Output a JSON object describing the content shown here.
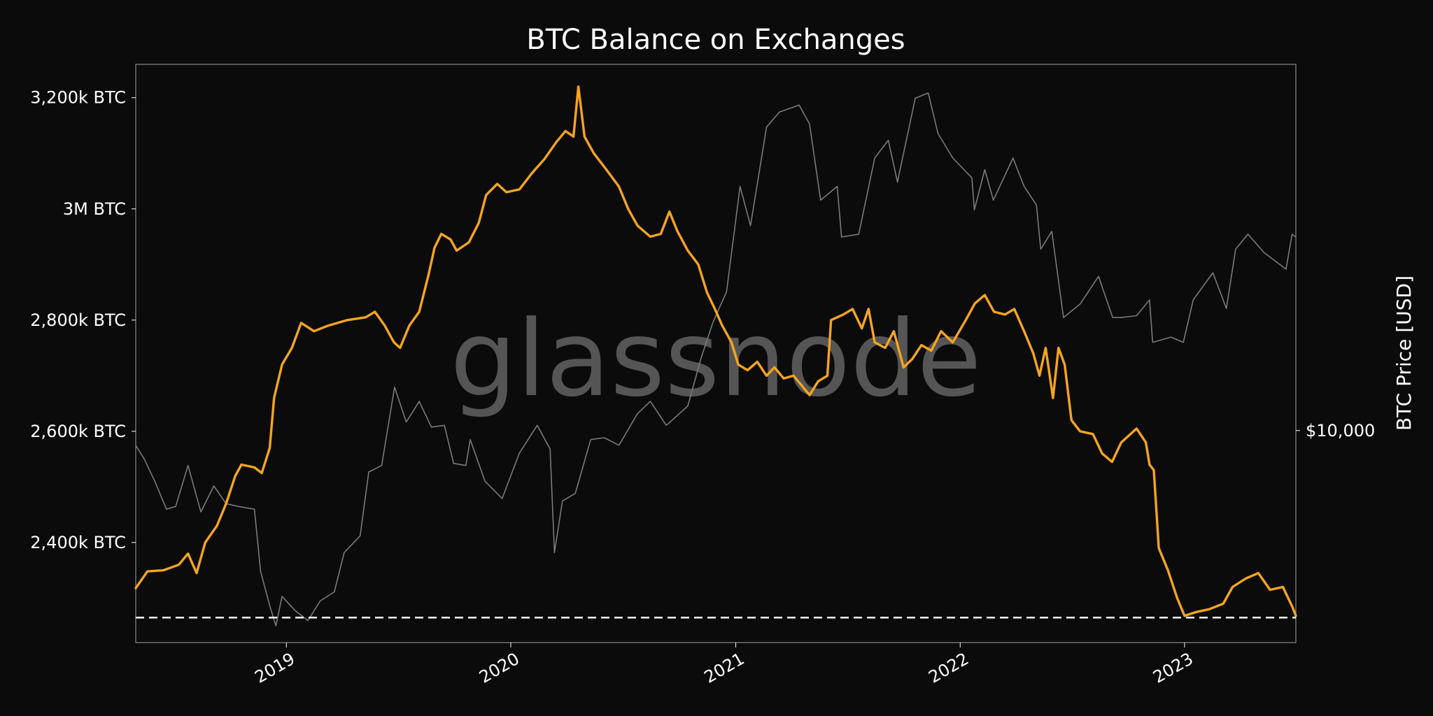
{
  "chart_data": {
    "type": "line",
    "title": "BTC Balance on Exchanges",
    "watermark": "glassnode",
    "xlim": [
      "2018-05-01",
      "2023-07-01"
    ],
    "x_ticks": [
      {
        "date": "2019-01-01",
        "label": "2019"
      },
      {
        "date": "2020-01-01",
        "label": "2020"
      },
      {
        "date": "2021-01-01",
        "label": "2021"
      },
      {
        "date": "2022-01-01",
        "label": "2022"
      },
      {
        "date": "2023-01-01",
        "label": "2023"
      }
    ],
    "y_left": {
      "unit": "BTC",
      "ylim": [
        2220000,
        3260000
      ],
      "ticks": [
        {
          "value": 2400000,
          "label": "2,400k BTC"
        },
        {
          "value": 2600000,
          "label": "2,600k BTC"
        },
        {
          "value": 2800000,
          "label": "2,800k BTC"
        },
        {
          "value": 3000000,
          "label": "3M BTC"
        },
        {
          "value": 3200000,
          "label": "3,200k BTC"
        }
      ]
    },
    "y_right": {
      "label": "BTC Price [USD]",
      "scale": "log",
      "ylim": [
        3000,
        80000
      ],
      "ticks": [
        {
          "value": 10000,
          "label": "$10,000"
        }
      ]
    },
    "reference_line": {
      "value": 2265000,
      "style": "dashed",
      "color": "#ffffff"
    },
    "series": [
      {
        "axis": "left",
        "color": "#f7a51c",
        "points": [
          [
            "2018-05-01",
            2318000
          ],
          [
            "2018-05-20",
            2348000
          ],
          [
            "2018-06-15",
            2350000
          ],
          [
            "2018-07-10",
            2360000
          ],
          [
            "2018-07-25",
            2380000
          ],
          [
            "2018-08-08",
            2345000
          ],
          [
            "2018-08-22",
            2400000
          ],
          [
            "2018-09-10",
            2430000
          ],
          [
            "2018-09-25",
            2470000
          ],
          [
            "2018-10-10",
            2520000
          ],
          [
            "2018-10-20",
            2540000
          ],
          [
            "2018-11-10",
            2535000
          ],
          [
            "2018-11-22",
            2525000
          ],
          [
            "2018-12-05",
            2570000
          ],
          [
            "2018-12-12",
            2660000
          ],
          [
            "2018-12-25",
            2720000
          ],
          [
            "2019-01-10",
            2750000
          ],
          [
            "2019-01-25",
            2795000
          ],
          [
            "2019-02-15",
            2780000
          ],
          [
            "2019-03-10",
            2790000
          ],
          [
            "2019-04-10",
            2800000
          ],
          [
            "2019-05-10",
            2805000
          ],
          [
            "2019-05-25",
            2815000
          ],
          [
            "2019-06-10",
            2790000
          ],
          [
            "2019-06-25",
            2760000
          ],
          [
            "2019-07-05",
            2750000
          ],
          [
            "2019-07-20",
            2790000
          ],
          [
            "2019-08-05",
            2815000
          ],
          [
            "2019-08-20",
            2880000
          ],
          [
            "2019-08-30",
            2930000
          ],
          [
            "2019-09-10",
            2955000
          ],
          [
            "2019-09-25",
            2945000
          ],
          [
            "2019-10-05",
            2925000
          ],
          [
            "2019-10-25",
            2940000
          ],
          [
            "2019-11-10",
            2975000
          ],
          [
            "2019-11-22",
            3025000
          ],
          [
            "2019-12-10",
            3045000
          ],
          [
            "2019-12-25",
            3030000
          ],
          [
            "2020-01-15",
            3035000
          ],
          [
            "2020-02-05",
            3065000
          ],
          [
            "2020-02-25",
            3090000
          ],
          [
            "2020-03-15",
            3120000
          ],
          [
            "2020-03-30",
            3140000
          ],
          [
            "2020-04-12",
            3130000
          ],
          [
            "2020-04-20",
            3220000
          ],
          [
            "2020-04-30",
            3130000
          ],
          [
            "2020-05-15",
            3100000
          ],
          [
            "2020-06-05",
            3070000
          ],
          [
            "2020-06-25",
            3040000
          ],
          [
            "2020-07-10",
            3000000
          ],
          [
            "2020-07-25",
            2970000
          ],
          [
            "2020-08-15",
            2950000
          ],
          [
            "2020-09-01",
            2955000
          ],
          [
            "2020-09-15",
            2995000
          ],
          [
            "2020-09-28",
            2960000
          ],
          [
            "2020-10-15",
            2925000
          ],
          [
            "2020-11-01",
            2900000
          ],
          [
            "2020-11-15",
            2850000
          ],
          [
            "2020-11-28",
            2820000
          ],
          [
            "2020-12-10",
            2790000
          ],
          [
            "2020-12-25",
            2760000
          ],
          [
            "2021-01-05",
            2720000
          ],
          [
            "2021-01-20",
            2710000
          ],
          [
            "2021-02-05",
            2725000
          ],
          [
            "2021-02-20",
            2700000
          ],
          [
            "2021-03-05",
            2715000
          ],
          [
            "2021-03-20",
            2695000
          ],
          [
            "2021-04-05",
            2700000
          ],
          [
            "2021-04-20",
            2680000
          ],
          [
            "2021-05-01",
            2665000
          ],
          [
            "2021-05-15",
            2690000
          ],
          [
            "2021-05-30",
            2700000
          ],
          [
            "2021-06-05",
            2800000
          ],
          [
            "2021-06-25",
            2810000
          ],
          [
            "2021-07-10",
            2820000
          ],
          [
            "2021-07-25",
            2785000
          ],
          [
            "2021-08-05",
            2820000
          ],
          [
            "2021-08-15",
            2760000
          ],
          [
            "2021-09-01",
            2750000
          ],
          [
            "2021-09-15",
            2780000
          ],
          [
            "2021-10-01",
            2715000
          ],
          [
            "2021-10-15",
            2730000
          ],
          [
            "2021-10-30",
            2755000
          ],
          [
            "2021-11-15",
            2745000
          ],
          [
            "2021-12-01",
            2780000
          ],
          [
            "2021-12-20",
            2760000
          ],
          [
            "2022-01-10",
            2800000
          ],
          [
            "2022-01-25",
            2830000
          ],
          [
            "2022-02-10",
            2845000
          ],
          [
            "2022-02-25",
            2815000
          ],
          [
            "2022-03-15",
            2810000
          ],
          [
            "2022-03-30",
            2820000
          ],
          [
            "2022-04-15",
            2780000
          ],
          [
            "2022-04-30",
            2740000
          ],
          [
            "2022-05-10",
            2700000
          ],
          [
            "2022-05-20",
            2750000
          ],
          [
            "2022-06-01",
            2660000
          ],
          [
            "2022-06-10",
            2750000
          ],
          [
            "2022-06-20",
            2720000
          ],
          [
            "2022-07-01",
            2620000
          ],
          [
            "2022-07-15",
            2600000
          ],
          [
            "2022-08-05",
            2595000
          ],
          [
            "2022-08-20",
            2560000
          ],
          [
            "2022-09-05",
            2545000
          ],
          [
            "2022-09-20",
            2580000
          ],
          [
            "2022-10-15",
            2605000
          ],
          [
            "2022-10-30",
            2580000
          ],
          [
            "2022-11-05",
            2540000
          ],
          [
            "2022-11-12",
            2530000
          ],
          [
            "2022-11-20",
            2390000
          ],
          [
            "2022-12-05",
            2350000
          ],
          [
            "2022-12-20",
            2300000
          ],
          [
            "2023-01-01",
            2268000
          ],
          [
            "2023-01-20",
            2275000
          ],
          [
            "2023-02-10",
            2280000
          ],
          [
            "2023-03-05",
            2290000
          ],
          [
            "2023-03-20",
            2320000
          ],
          [
            "2023-04-10",
            2335000
          ],
          [
            "2023-05-01",
            2345000
          ],
          [
            "2023-05-20",
            2315000
          ],
          [
            "2023-06-10",
            2320000
          ],
          [
            "2023-06-25",
            2285000
          ],
          [
            "2023-07-01",
            2268000
          ]
        ]
      },
      {
        "axis": "right",
        "color": "#7a7a7a",
        "points": [
          [
            "2018-05-01",
            9200
          ],
          [
            "2018-05-15",
            8500
          ],
          [
            "2018-06-01",
            7500
          ],
          [
            "2018-06-20",
            6400
          ],
          [
            "2018-07-05",
            6500
          ],
          [
            "2018-07-25",
            8200
          ],
          [
            "2018-08-15",
            6300
          ],
          [
            "2018-09-05",
            7300
          ],
          [
            "2018-09-25",
            6600
          ],
          [
            "2018-10-15",
            6500
          ],
          [
            "2018-11-10",
            6400
          ],
          [
            "2018-11-20",
            4500
          ],
          [
            "2018-12-05",
            3700
          ],
          [
            "2018-12-15",
            3300
          ],
          [
            "2018-12-25",
            3900
          ],
          [
            "2019-01-15",
            3600
          ],
          [
            "2019-02-05",
            3400
          ],
          [
            "2019-02-25",
            3800
          ],
          [
            "2019-03-20",
            4000
          ],
          [
            "2019-04-05",
            5000
          ],
          [
            "2019-05-01",
            5500
          ],
          [
            "2019-05-15",
            7900
          ],
          [
            "2019-06-05",
            8200
          ],
          [
            "2019-06-26",
            12800
          ],
          [
            "2019-07-15",
            10500
          ],
          [
            "2019-08-05",
            11800
          ],
          [
            "2019-08-25",
            10200
          ],
          [
            "2019-09-15",
            10300
          ],
          [
            "2019-09-30",
            8300
          ],
          [
            "2019-10-20",
            8200
          ],
          [
            "2019-10-27",
            9500
          ],
          [
            "2019-11-20",
            7500
          ],
          [
            "2019-12-18",
            6800
          ],
          [
            "2020-01-15",
            8800
          ],
          [
            "2020-02-13",
            10300
          ],
          [
            "2020-03-05",
            9000
          ],
          [
            "2020-03-12",
            5000
          ],
          [
            "2020-03-25",
            6700
          ],
          [
            "2020-04-15",
            7000
          ],
          [
            "2020-05-10",
            9500
          ],
          [
            "2020-06-01",
            9600
          ],
          [
            "2020-06-25",
            9200
          ],
          [
            "2020-07-25",
            11000
          ],
          [
            "2020-08-15",
            11800
          ],
          [
            "2020-09-10",
            10300
          ],
          [
            "2020-10-15",
            11500
          ],
          [
            "2020-11-05",
            15000
          ],
          [
            "2020-11-25",
            18500
          ],
          [
            "2020-12-17",
            22000
          ],
          [
            "2021-01-08",
            40000
          ],
          [
            "2021-01-25",
            32000
          ],
          [
            "2021-02-20",
            56000
          ],
          [
            "2021-03-13",
            61000
          ],
          [
            "2021-04-14",
            63500
          ],
          [
            "2021-05-01",
            57000
          ],
          [
            "2021-05-19",
            37000
          ],
          [
            "2021-06-15",
            40000
          ],
          [
            "2021-06-22",
            30000
          ],
          [
            "2021-07-20",
            30500
          ],
          [
            "2021-08-15",
            47000
          ],
          [
            "2021-09-06",
            52000
          ],
          [
            "2021-09-21",
            41000
          ],
          [
            "2021-10-20",
            66000
          ],
          [
            "2021-11-10",
            68000
          ],
          [
            "2021-11-26",
            54000
          ],
          [
            "2021-12-20",
            47000
          ],
          [
            "2022-01-20",
            42000
          ],
          [
            "2022-01-24",
            35000
          ],
          [
            "2022-02-10",
            44000
          ],
          [
            "2022-02-24",
            37000
          ],
          [
            "2022-03-28",
            47000
          ],
          [
            "2022-04-15",
            40000
          ],
          [
            "2022-05-05",
            36000
          ],
          [
            "2022-05-12",
            28000
          ],
          [
            "2022-05-30",
            31000
          ],
          [
            "2022-06-18",
            19000
          ],
          [
            "2022-07-15",
            20500
          ],
          [
            "2022-08-14",
            24000
          ],
          [
            "2022-09-06",
            19000
          ],
          [
            "2022-09-20",
            19000
          ],
          [
            "2022-10-15",
            19200
          ],
          [
            "2022-11-05",
            21000
          ],
          [
            "2022-11-10",
            16500
          ],
          [
            "2022-12-10",
            17000
          ],
          [
            "2022-12-30",
            16500
          ],
          [
            "2023-01-15",
            21000
          ],
          [
            "2023-02-16",
            24500
          ],
          [
            "2023-03-10",
            20000
          ],
          [
            "2023-03-25",
            28000
          ],
          [
            "2023-04-14",
            30500
          ],
          [
            "2023-05-10",
            27500
          ],
          [
            "2023-06-15",
            25000
          ],
          [
            "2023-06-25",
            30500
          ],
          [
            "2023-07-01",
            30000
          ]
        ]
      }
    ]
  }
}
